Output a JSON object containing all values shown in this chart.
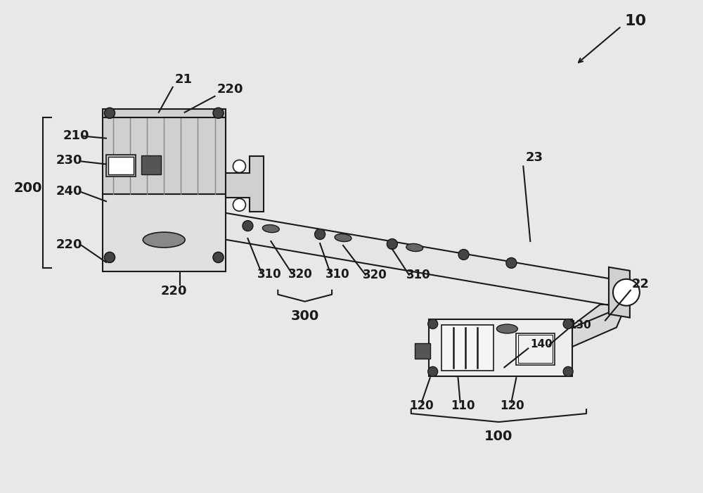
{
  "bg_color": "#e8e8e8",
  "line_color": "#1a1a1a",
  "dark_fill": "#555555",
  "light_fill": "#cccccc",
  "white_fill": "#ffffff",
  "label_10": "10",
  "label_21": "21",
  "label_22": "22",
  "label_23": "23",
  "label_200": "200",
  "label_210": "210",
  "label_220a": "220",
  "label_220b": "220",
  "label_220c": "220",
  "label_230": "230",
  "label_240": "240",
  "label_300": "300",
  "label_310a": "310",
  "label_310b": "310",
  "label_310c": "310",
  "label_320a": "320",
  "label_320b": "320",
  "label_100": "100",
  "label_110": "110",
  "label_120a": "120",
  "label_120b": "120",
  "label_130": "130",
  "label_140": "140"
}
